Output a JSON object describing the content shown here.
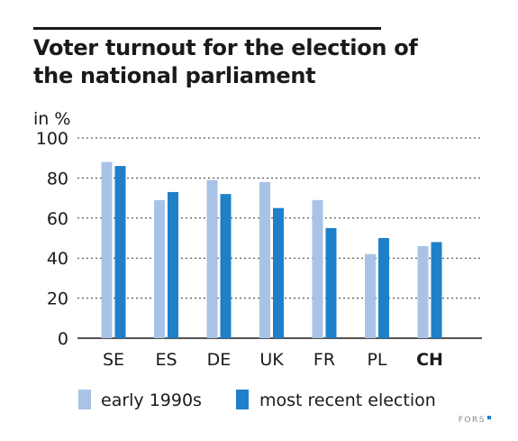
{
  "chart_data": {
    "type": "bar",
    "title": "Voter turnout for the election of the national parliament",
    "ylabel": "in %",
    "ylim": [
      0,
      100
    ],
    "yticks": [
      0,
      20,
      40,
      60,
      80,
      100
    ],
    "grid": "horizontal dashed",
    "categories": [
      "SE",
      "ES",
      "DE",
      "UK",
      "FR",
      "PL",
      "CH"
    ],
    "highlight_category": "CH",
    "series": [
      {
        "name": "early 1990s",
        "color": "#a8c3e6",
        "values": [
          88,
          69,
          79,
          78,
          69,
          42,
          46
        ]
      },
      {
        "name": "most recent election",
        "color": "#1f7fc9",
        "values": [
          86,
          73,
          72,
          65,
          55,
          50,
          48
        ]
      }
    ],
    "legend_position": "bottom"
  },
  "footer": {
    "source_logo": "FORS"
  }
}
